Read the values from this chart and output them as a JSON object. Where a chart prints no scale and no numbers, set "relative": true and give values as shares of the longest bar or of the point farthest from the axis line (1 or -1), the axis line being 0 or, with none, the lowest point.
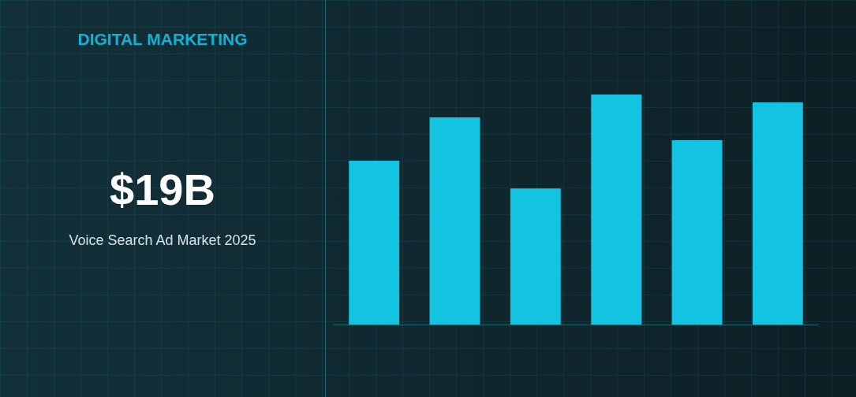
{
  "chart_data": [
    {
      "type": "other",
      "title": "DIGITAL MARKETING",
      "annotations": [
        "$19B",
        "Voice Search Ad Market 2025"
      ]
    },
    {
      "type": "bar",
      "relative": true,
      "categories": [
        null,
        null,
        null,
        null,
        null,
        null
      ],
      "color": "#12c4e2",
      "values": [
        0.712,
        0.901,
        0.592,
        1,
        0.801,
        0.966
      ]
    }
  ]
}
